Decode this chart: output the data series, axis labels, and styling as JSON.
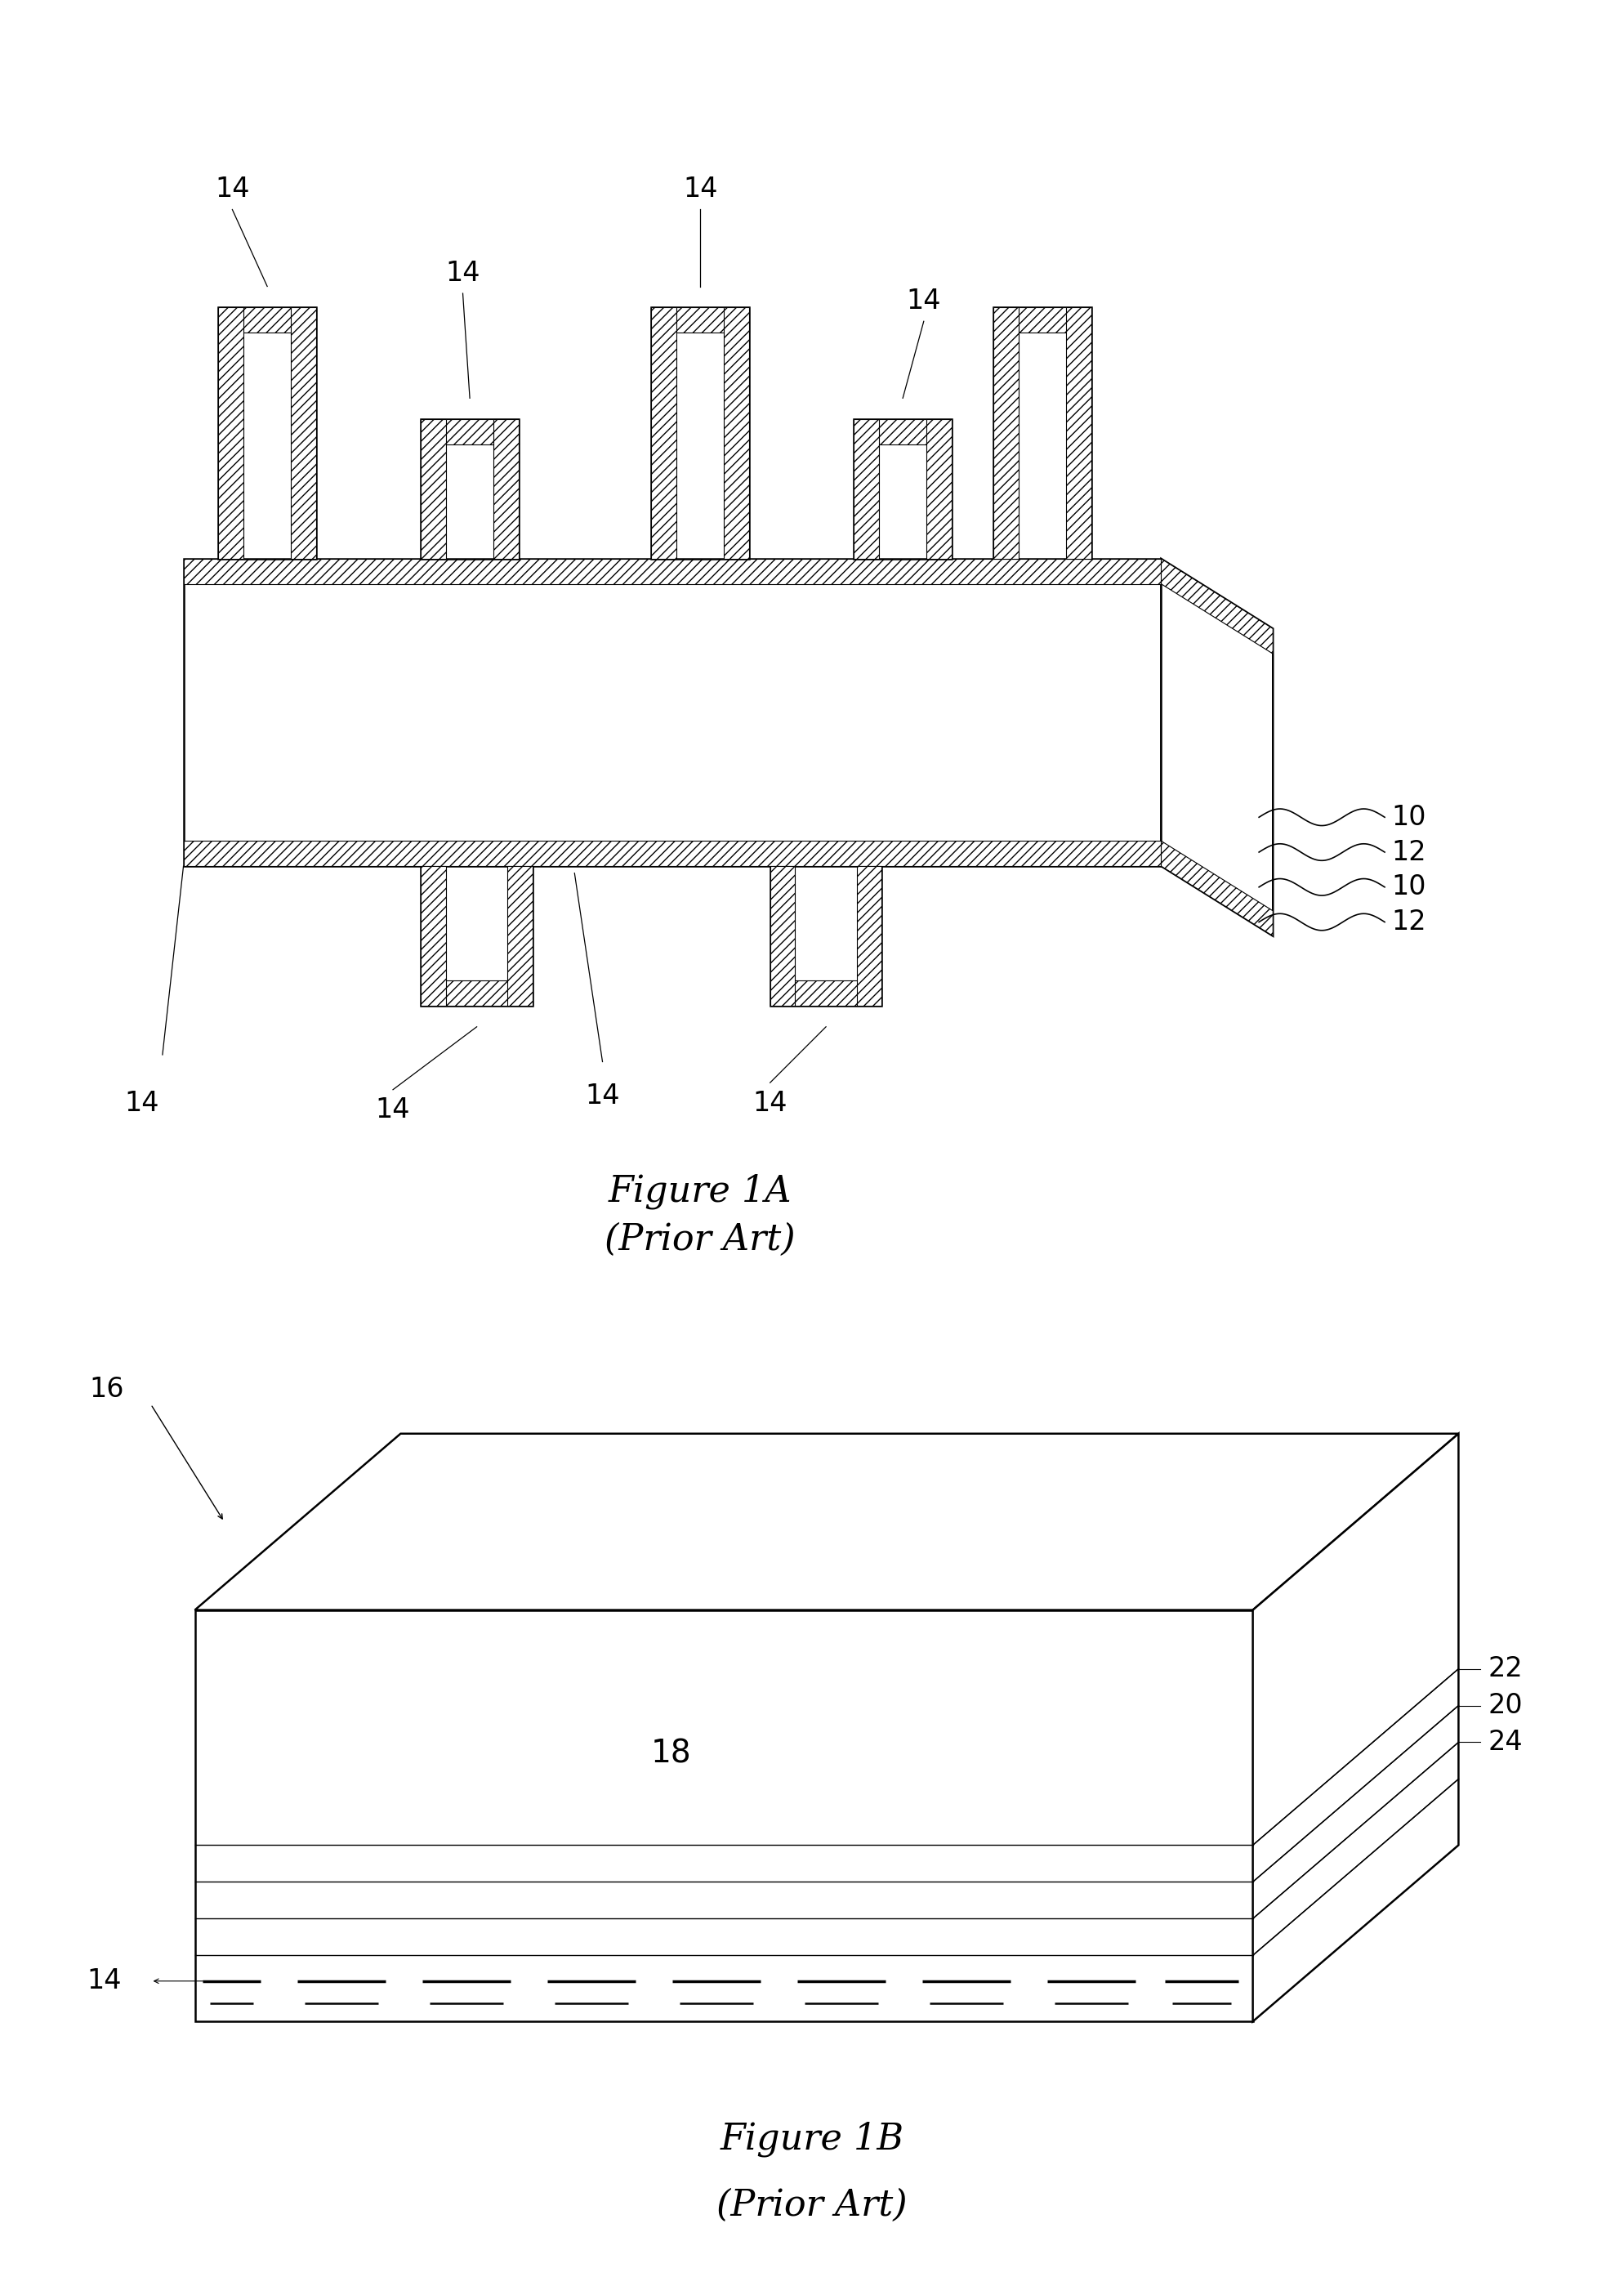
{
  "fig1a_caption": "Figure 1A",
  "fig1a_subcaption": "(Prior Art)",
  "fig1b_caption": "Figure 1B",
  "fig1b_subcaption": "(Prior Art)",
  "bg_color": "#ffffff",
  "line_color": "#000000",
  "label_color": "#000000",
  "caption_fontsize": 32,
  "label_fontsize": 24
}
